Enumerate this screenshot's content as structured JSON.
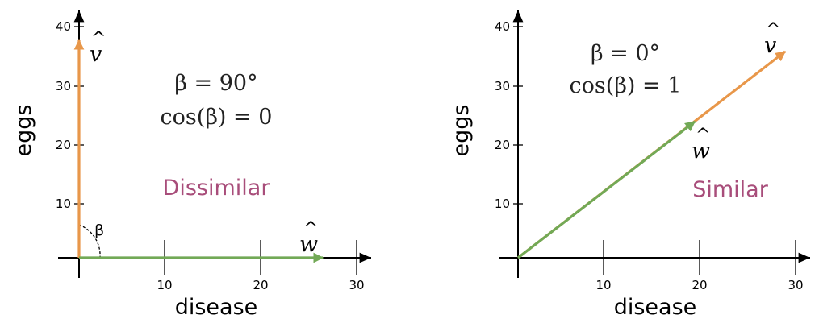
{
  "colors": {
    "v_vector": "#e8974a",
    "w_vector": "#72a956",
    "verdict": "#a84d7a"
  },
  "panels": [
    {
      "id": "left",
      "x_label": "disease",
      "y_label": "eggs",
      "x_ticks": [
        "10",
        "20",
        "30"
      ],
      "y_ticks": [
        "10",
        "20",
        "30",
        "40"
      ],
      "v_label": "v",
      "v_hat": "^",
      "w_label": "w",
      "w_hat": "^",
      "beta_eq": "β = 90°",
      "cos_eq": "cos(β) = 0",
      "verdict": "Dissimilar",
      "angle_label": "β",
      "v_vector": {
        "from": [
          0,
          0
        ],
        "to": [
          0,
          38
        ]
      },
      "w_vector": {
        "from": [
          0,
          0
        ],
        "to": [
          26,
          0
        ]
      }
    },
    {
      "id": "right",
      "x_label": "disease",
      "y_label": "eggs",
      "x_ticks": [
        "10",
        "20",
        "30"
      ],
      "y_ticks": [
        "10",
        "20",
        "30",
        "40"
      ],
      "v_label": "v",
      "v_hat": "^",
      "w_label": "w",
      "w_hat": "^",
      "beta_eq": "β = 0°",
      "cos_eq": "cos(β) = 1",
      "verdict": "Similar",
      "v_vector": {
        "from": [
          19,
          24
        ],
        "to": [
          28,
          35
        ]
      },
      "w_vector": {
        "from": [
          0,
          0
        ],
        "to": [
          19,
          24
        ]
      }
    }
  ]
}
